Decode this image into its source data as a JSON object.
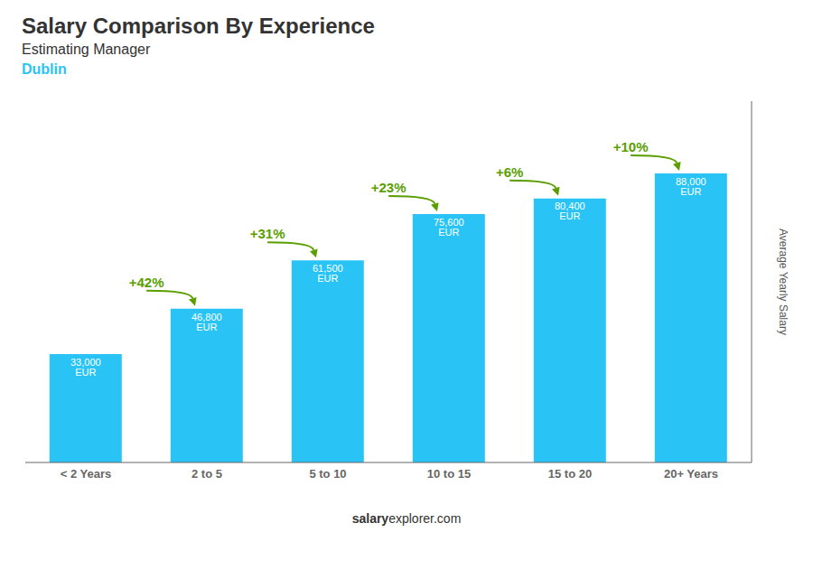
{
  "chart_data": {
    "type": "bar",
    "title": "Salary Comparison By Experience",
    "subtitle": "Estimating Manager",
    "city": "Dublin",
    "categories": [
      "< 2 Years",
      "2 to 5",
      "5 to 10",
      "10 to 15",
      "15 to 20",
      "20+ Years"
    ],
    "values": [
      33000,
      46800,
      61500,
      75600,
      80400,
      88000
    ],
    "value_labels": [
      "33,000 EUR",
      "46,800 EUR",
      "61,500 EUR",
      "75,600 EUR",
      "80,400 EUR",
      "88,000 EUR"
    ],
    "data_labels": true,
    "annotations": [
      null,
      "+42%",
      "+31%",
      "+23%",
      "+6%",
      "+10%"
    ],
    "color": "#29c4f5",
    "ylim": [
      0,
      110000
    ],
    "yticks": [],
    "tick_labels": "x",
    "ylabel": "Average Yearly Salary",
    "footer": [
      "salary",
      "explorer.com"
    ],
    "grid": false
  }
}
